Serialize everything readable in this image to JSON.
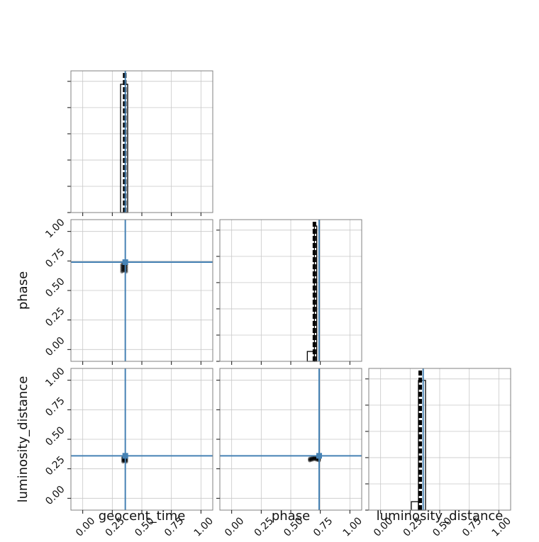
{
  "chart_data": {
    "type": "corner",
    "parameters": [
      "geocent_time",
      "phase",
      "luminosity_distance"
    ],
    "axis_range": [
      -0.1,
      1.1
    ],
    "ticks": [
      0.0,
      0.25,
      0.5,
      0.75,
      1.0
    ],
    "tick_labels": [
      "0.00",
      "0.25",
      "0.50",
      "0.75",
      "1.00"
    ],
    "grid": true,
    "truths": {
      "geocent_time": 0.36,
      "phase": 0.74,
      "luminosity_distance": 0.36
    },
    "histograms": [
      {
        "parameter": "geocent_time",
        "solid_bars": [
          {
            "x0": 0.32,
            "x1": 0.38,
            "height": 0.91
          }
        ],
        "dashed_line": {
          "x": 0.355,
          "height": 1.0
        }
      },
      {
        "parameter": "phase",
        "solid_bars": [
          {
            "x0": 0.64,
            "x1": 0.7,
            "height": 0.07
          },
          {
            "x0": 0.7,
            "x1": 0.72,
            "height": 0.96
          }
        ],
        "dashed_line": {
          "x": 0.7,
          "height": 1.0
        }
      },
      {
        "parameter": "luminosity_distance",
        "solid_bars": [
          {
            "x0": 0.26,
            "x1": 0.32,
            "height": 0.06
          },
          {
            "x0": 0.32,
            "x1": 0.38,
            "height": 0.92
          }
        ],
        "dashed_line": {
          "x": 0.335,
          "height": 1.0
        }
      }
    ],
    "scatter_panels": [
      {
        "x": "geocent_time",
        "y": "phase",
        "cluster": {
          "x": 0.35,
          "y": 0.7,
          "x_spread": 0.02,
          "y_spread": 0.03
        }
      },
      {
        "x": "geocent_time",
        "y": "luminosity_distance",
        "cluster": {
          "x": 0.355,
          "y": 0.34,
          "x_spread": 0.015,
          "y_spread": 0.02
        }
      },
      {
        "x": "phase",
        "y": "luminosity_distance",
        "cluster": {
          "x": 0.7,
          "y": 0.34,
          "x_spread": 0.04,
          "y_spread": 0.01
        }
      }
    ],
    "colors": {
      "truth": "#4682b4",
      "hist": "#000000",
      "grid": "#c8c8c8",
      "frame": "#808080"
    }
  }
}
